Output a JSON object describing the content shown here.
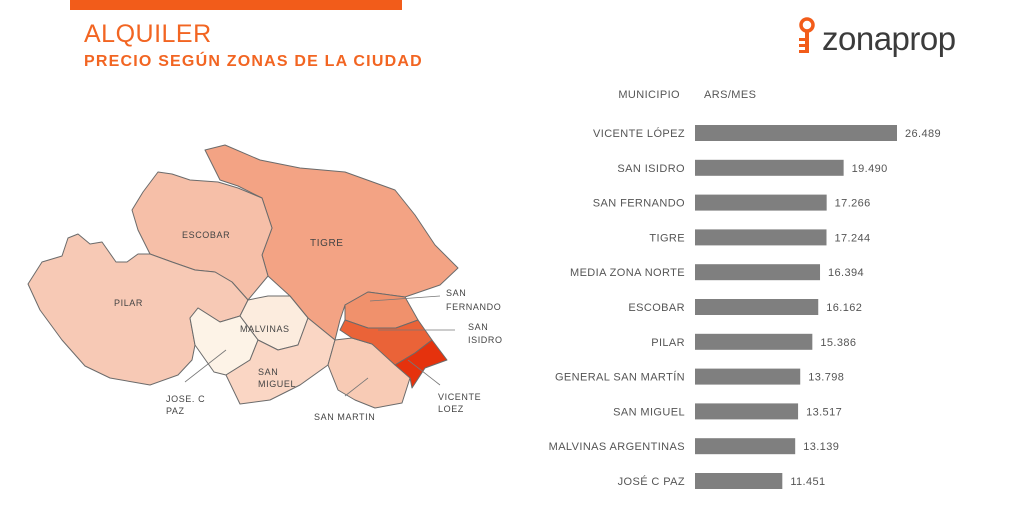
{
  "header": {
    "title": "ALQUILER",
    "subtitle": "PRECIO SEGÚN ZONAS DE LA CIUDAD",
    "accent_color": "#f26522"
  },
  "logo": {
    "text": "zonaprop",
    "icon": "key-icon",
    "color": "#f25c1a"
  },
  "map": {
    "labels": {
      "escobar": "ESCOBAR",
      "tigre": "TIGRE",
      "pilar": "PILAR",
      "malvinas": "MALVINAS",
      "san_miguel_1": "SAN",
      "san_miguel_2": "MIGUEL",
      "jose_1": "JOSE. C",
      "jose_2": "PAZ",
      "san_martin": "SAN MARTIN",
      "san_fernando_1": "SAN",
      "san_fernando_2": "FERNANDO",
      "san_isidro_1": "SAN",
      "san_isidro_2": "ISIDRO",
      "vicente_1": "VICENTE",
      "vicente_2": "LOEZ"
    }
  },
  "chart_data": {
    "type": "bar",
    "orientation": "horizontal",
    "category_header": "MUNICIPIO",
    "value_header": "ARS/MES",
    "categories": [
      "VICENTE LÓPEZ",
      "SAN ISIDRO",
      "SAN FERNANDO",
      "TIGRE",
      "MEDIA ZONA NORTE",
      "ESCOBAR",
      "PILAR",
      "GENERAL SAN MARTÍN",
      "SAN MIGUEL",
      "MALVINAS ARGENTINAS",
      "JOSÉ C PAZ"
    ],
    "values": [
      26489,
      19490,
      17266,
      17244,
      16394,
      16162,
      15386,
      13798,
      13517,
      13139,
      11451
    ],
    "labels": [
      "26.489",
      "19.490",
      "17.266",
      "17.244",
      "16.394",
      "16.162",
      "15.386",
      "13.798",
      "13.517",
      "13.139",
      "11.451"
    ],
    "bar_color": "#7f7f7f",
    "xlim": [
      0,
      26489
    ]
  }
}
